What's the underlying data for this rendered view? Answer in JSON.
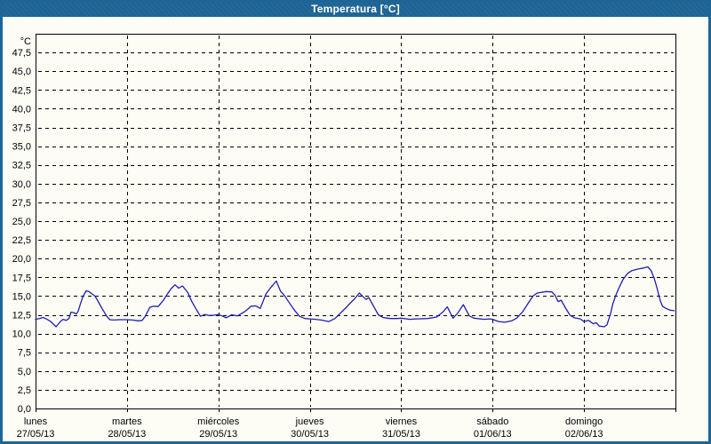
{
  "window": {
    "title": "Temperatura [°C]"
  },
  "colors": {
    "titlebar": "#1e6596",
    "window_border": "#1e6596",
    "background": "#fdfdf6",
    "plot_line": "#1e1eb0",
    "axis": "#000000",
    "grid": "#000000",
    "title_text": "#ffffff",
    "label_text": "#000000"
  },
  "chart_data": {
    "type": "line",
    "title": "Temperatura [°C]",
    "y_unit": "°C",
    "ylim": [
      0,
      50
    ],
    "y_tick_step": 2.5,
    "grid": "dashed",
    "legend": "none",
    "y_ticks": [
      0,
      2.5,
      5,
      7.5,
      10,
      12.5,
      15,
      17.5,
      20,
      22.5,
      25,
      27.5,
      30,
      32.5,
      35,
      37.5,
      40,
      42.5,
      45,
      47.5
    ],
    "y_tick_labels": [
      "0,0",
      "2,5",
      "5,0",
      "7,5",
      "10,0",
      "12,5",
      "15,0",
      "17,5",
      "20,0",
      "22,5",
      "25,0",
      "27,5",
      "30,0",
      "32,5",
      "35,0",
      "37,5",
      "40,0",
      "42,5",
      "45,0",
      "47,5"
    ],
    "x_days": [
      {
        "name": "lunes",
        "date": "27/05/13"
      },
      {
        "name": "martes",
        "date": "28/05/13"
      },
      {
        "name": "miércoles",
        "date": "29/05/13"
      },
      {
        "name": "jueves",
        "date": "30/05/13"
      },
      {
        "name": "viernes",
        "date": "31/05/13"
      },
      {
        "name": "sábado",
        "date": "01/06/13"
      },
      {
        "name": "domingo",
        "date": "02/06/13"
      }
    ],
    "x_hours_total": 168,
    "series": [
      {
        "name": "Temperatura",
        "color": "#1e1eb0",
        "points": [
          [
            0,
            11.9
          ],
          [
            1,
            12.0
          ],
          [
            2,
            12.15
          ],
          [
            3,
            11.9
          ],
          [
            4,
            11.6
          ],
          [
            5.4,
            10.9
          ],
          [
            6.5,
            11.6
          ],
          [
            7.2,
            11.9
          ],
          [
            8,
            11.75
          ],
          [
            8.8,
            12.0
          ],
          [
            9.3,
            12.85
          ],
          [
            10,
            12.8
          ],
          [
            10.7,
            12.6
          ],
          [
            11.2,
            13.0
          ],
          [
            11.8,
            14.0
          ],
          [
            12.5,
            15.0
          ],
          [
            13.3,
            15.7
          ],
          [
            14,
            15.6
          ],
          [
            14.8,
            15.3
          ],
          [
            15.6,
            15.0
          ],
          [
            16.3,
            14.4
          ],
          [
            17.5,
            13.3
          ],
          [
            18.7,
            12.3
          ],
          [
            19.5,
            11.85
          ],
          [
            20.5,
            11.8
          ],
          [
            22,
            11.85
          ],
          [
            23.2,
            11.85
          ],
          [
            24,
            11.85
          ],
          [
            25.5,
            11.8
          ],
          [
            27,
            11.7
          ],
          [
            28,
            11.75
          ],
          [
            28.8,
            12.3
          ],
          [
            30,
            13.5
          ],
          [
            31,
            13.65
          ],
          [
            32.2,
            13.6
          ],
          [
            33.5,
            14.4
          ],
          [
            34.5,
            15.2
          ],
          [
            35.6,
            16.0
          ],
          [
            36.6,
            16.5
          ],
          [
            37.6,
            16.05
          ],
          [
            38.6,
            16.35
          ],
          [
            40,
            15.45
          ],
          [
            41,
            14.3
          ],
          [
            42.2,
            13.2
          ],
          [
            43.3,
            12.3
          ],
          [
            44.4,
            12.55
          ],
          [
            45.5,
            12.4
          ],
          [
            47,
            12.45
          ],
          [
            48,
            12.55
          ],
          [
            49.2,
            12.3
          ],
          [
            50,
            12.1
          ],
          [
            51.5,
            12.5
          ],
          [
            53,
            12.35
          ],
          [
            55,
            12.95
          ],
          [
            56.6,
            13.65
          ],
          [
            57.8,
            13.7
          ],
          [
            59,
            13.35
          ],
          [
            60.5,
            15.3
          ],
          [
            61.7,
            16.1
          ],
          [
            63.2,
            17.0
          ],
          [
            64.3,
            15.65
          ],
          [
            65.3,
            15.1
          ],
          [
            66.5,
            14.2
          ],
          [
            68,
            13.1
          ],
          [
            69.3,
            12.3
          ],
          [
            70.7,
            12.0
          ],
          [
            72,
            11.95
          ],
          [
            73.5,
            11.9
          ],
          [
            75,
            11.8
          ],
          [
            77,
            11.6
          ],
          [
            78.6,
            12.0
          ],
          [
            80,
            12.7
          ],
          [
            81.6,
            13.5
          ],
          [
            82.7,
            14.1
          ],
          [
            83.8,
            14.65
          ],
          [
            85,
            15.4
          ],
          [
            86,
            14.9
          ],
          [
            86.8,
            14.55
          ],
          [
            87.5,
            14.8
          ],
          [
            88.9,
            13.5
          ],
          [
            90,
            12.5
          ],
          [
            91.2,
            12.15
          ],
          [
            93,
            12.0
          ],
          [
            95,
            12.0
          ],
          [
            96,
            12.05
          ],
          [
            98.3,
            11.9
          ],
          [
            100,
            11.95
          ],
          [
            103,
            12.0
          ],
          [
            105.3,
            12.2
          ],
          [
            107,
            12.9
          ],
          [
            108.1,
            13.55
          ],
          [
            109.6,
            12.05
          ],
          [
            110.8,
            12.7
          ],
          [
            112.3,
            13.85
          ],
          [
            113.9,
            12.35
          ],
          [
            115.1,
            12.05
          ],
          [
            117.8,
            11.9
          ],
          [
            119.2,
            11.95
          ],
          [
            120,
            11.9
          ],
          [
            121.6,
            11.6
          ],
          [
            123.2,
            11.5
          ],
          [
            125,
            11.7
          ],
          [
            126.3,
            12.05
          ],
          [
            127.9,
            12.9
          ],
          [
            129.4,
            14.1
          ],
          [
            130.6,
            15.0
          ],
          [
            131.7,
            15.4
          ],
          [
            134.1,
            15.6
          ],
          [
            135.6,
            15.55
          ],
          [
            136.4,
            15.1
          ],
          [
            137.2,
            14.25
          ],
          [
            138,
            14.45
          ],
          [
            139.1,
            13.45
          ],
          [
            140.3,
            12.45
          ],
          [
            141.5,
            12.1
          ],
          [
            143,
            11.95
          ],
          [
            144,
            11.6
          ],
          [
            145.2,
            11.75
          ],
          [
            146.4,
            11.3
          ],
          [
            147.2,
            11.45
          ],
          [
            148,
            11.0
          ],
          [
            149.3,
            10.9
          ],
          [
            150,
            11.15
          ],
          [
            151,
            12.7
          ],
          [
            151.5,
            13.85
          ],
          [
            152.3,
            15.05
          ],
          [
            153.1,
            16.0
          ],
          [
            154.2,
            17.2
          ],
          [
            155.4,
            18.0
          ],
          [
            156.6,
            18.4
          ],
          [
            158.1,
            18.6
          ],
          [
            159.7,
            18.75
          ],
          [
            160.7,
            18.9
          ],
          [
            161.6,
            18.4
          ],
          [
            162.4,
            17.4
          ],
          [
            163.2,
            16.0
          ],
          [
            164,
            14.4
          ],
          [
            164.6,
            13.65
          ],
          [
            165.5,
            13.35
          ],
          [
            166.7,
            13.1
          ],
          [
            167.7,
            13.05
          ]
        ]
      }
    ]
  }
}
